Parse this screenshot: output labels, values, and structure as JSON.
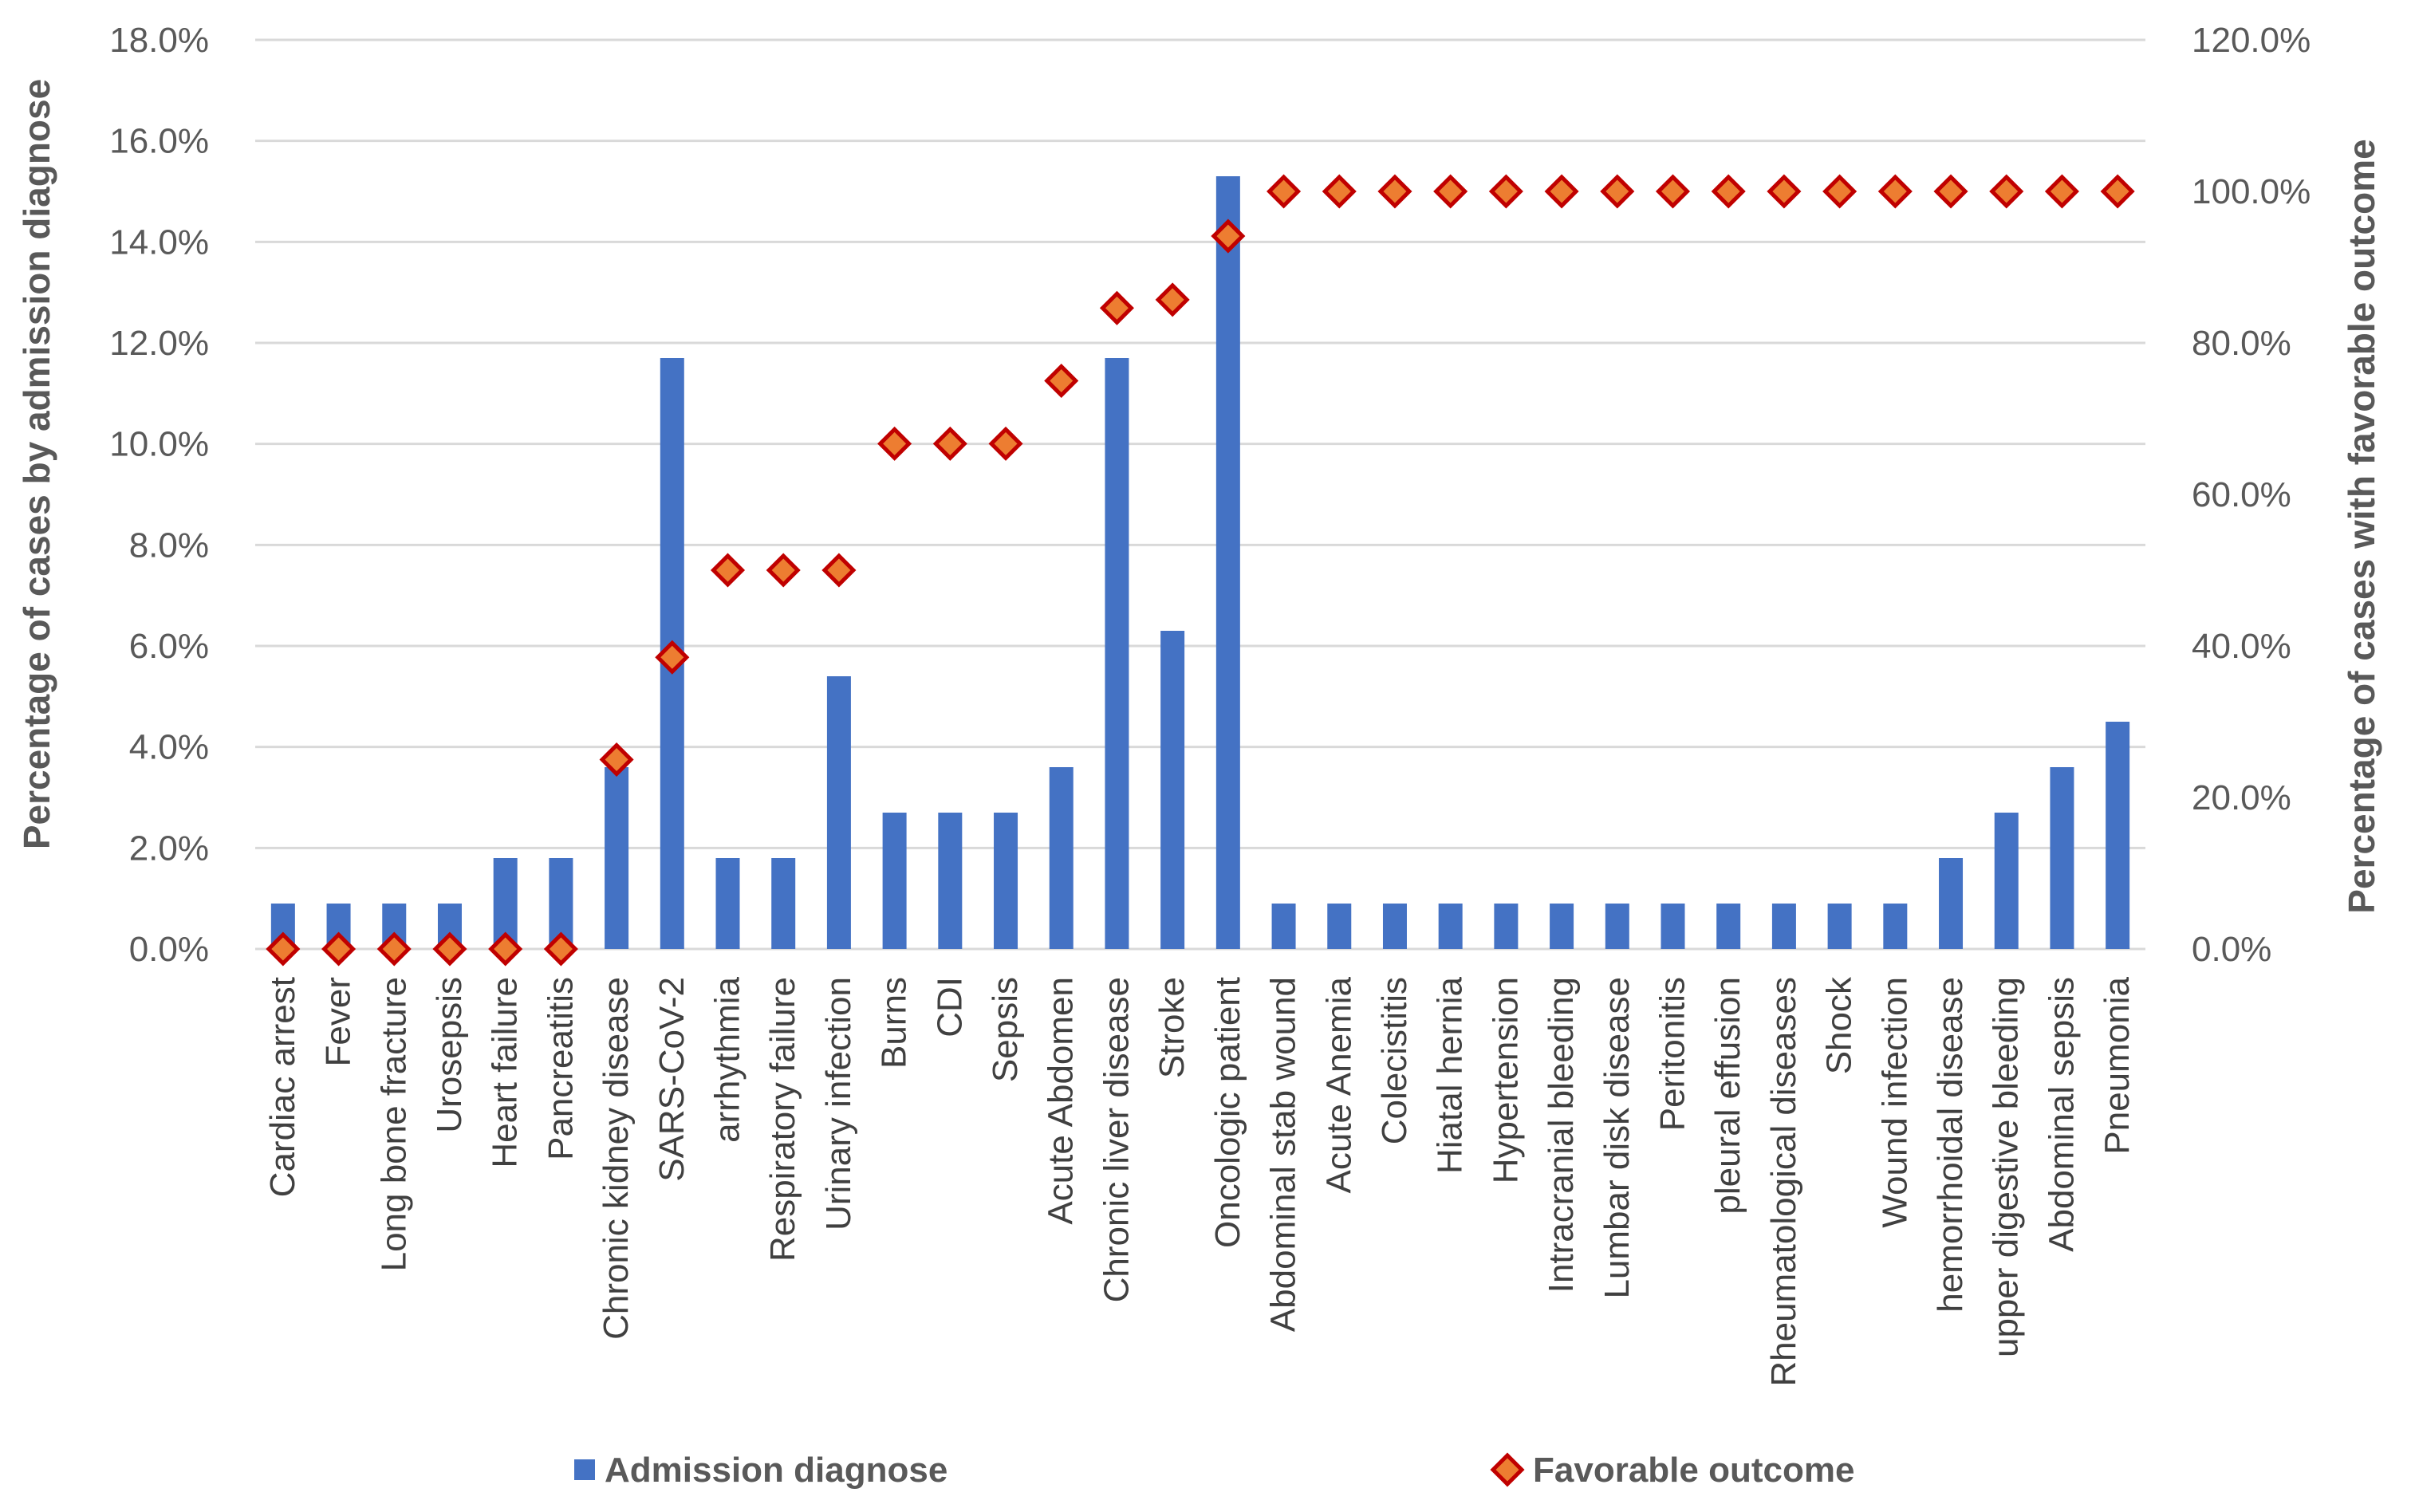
{
  "chart_data": {
    "type": "bar+scatter",
    "categories": [
      "Cardiac arrest",
      "Fever",
      "Long bone fracture",
      "Urosepsis",
      "Heart failure",
      "Pancreatitis",
      "Chronic kidney disease",
      "SARS-CoV-2",
      "arrhythmia",
      "Respiratory failure",
      "Urinary infection",
      "Burns",
      "CDI",
      "Sepsis",
      "Acute Abdomen",
      "Chronic liver disease",
      "Stroke",
      "Oncologic patient",
      "Abdominal stab wound",
      "Acute Anemia",
      "Colecistitis",
      "Hiatal hernia",
      "Hypertension",
      "Intracranial bleeding",
      "Lumbar disk disease",
      "Peritonitis",
      "pleural effusion",
      "Rheumatological diseases",
      "Shock",
      "Wound infection",
      "hemorrhoidal disease",
      "upper digestive bleeding",
      "Abdominal sepsis",
      "Pneumonia"
    ],
    "series": [
      {
        "name": "Admission diagnose",
        "axis": "left",
        "kind": "bar",
        "color": "#4472C4",
        "values": [
          0.9,
          0.9,
          0.9,
          0.9,
          1.8,
          1.8,
          3.6,
          11.7,
          1.8,
          1.8,
          5.4,
          2.7,
          2.7,
          2.7,
          3.6,
          11.7,
          6.3,
          15.3,
          0.9,
          0.9,
          0.9,
          0.9,
          0.9,
          0.9,
          0.9,
          0.9,
          0.9,
          0.9,
          0.9,
          0.9,
          1.8,
          2.7,
          3.6,
          4.5
        ]
      },
      {
        "name": "Favorable outcome",
        "axis": "right",
        "kind": "marker",
        "color": "#ED7D31",
        "edge_color": "#C00000",
        "values": [
          0,
          0,
          0,
          0,
          0,
          0,
          25,
          38.5,
          50,
          50,
          50,
          66.7,
          66.7,
          66.7,
          75,
          84.6,
          85.7,
          94.1,
          100,
          100,
          100,
          100,
          100,
          100,
          100,
          100,
          100,
          100,
          100,
          100,
          100,
          100,
          100,
          100
        ]
      }
    ],
    "y_left": {
      "label": "Percentage of cases by admission diagnose",
      "min": 0,
      "max": 18,
      "step": 2,
      "tick_labels": [
        "0.0%",
        "2.0%",
        "4.0%",
        "6.0%",
        "8.0%",
        "10.0%",
        "12.0%",
        "14.0%",
        "16.0%",
        "18.0%"
      ]
    },
    "y_right": {
      "label": "Percentage of cases with favorable outcome",
      "min": 0,
      "max": 120,
      "step": 20,
      "tick_labels": [
        "0.0%",
        "20.0%",
        "40.0%",
        "60.0%",
        "80.0%",
        "100.0%",
        "120.0%"
      ]
    },
    "grid": true,
    "legend": {
      "position": "bottom",
      "items": [
        "Admission diagnose",
        "Favorable outcome"
      ]
    },
    "colors": {
      "gridline": "#D9D9D9"
    }
  }
}
